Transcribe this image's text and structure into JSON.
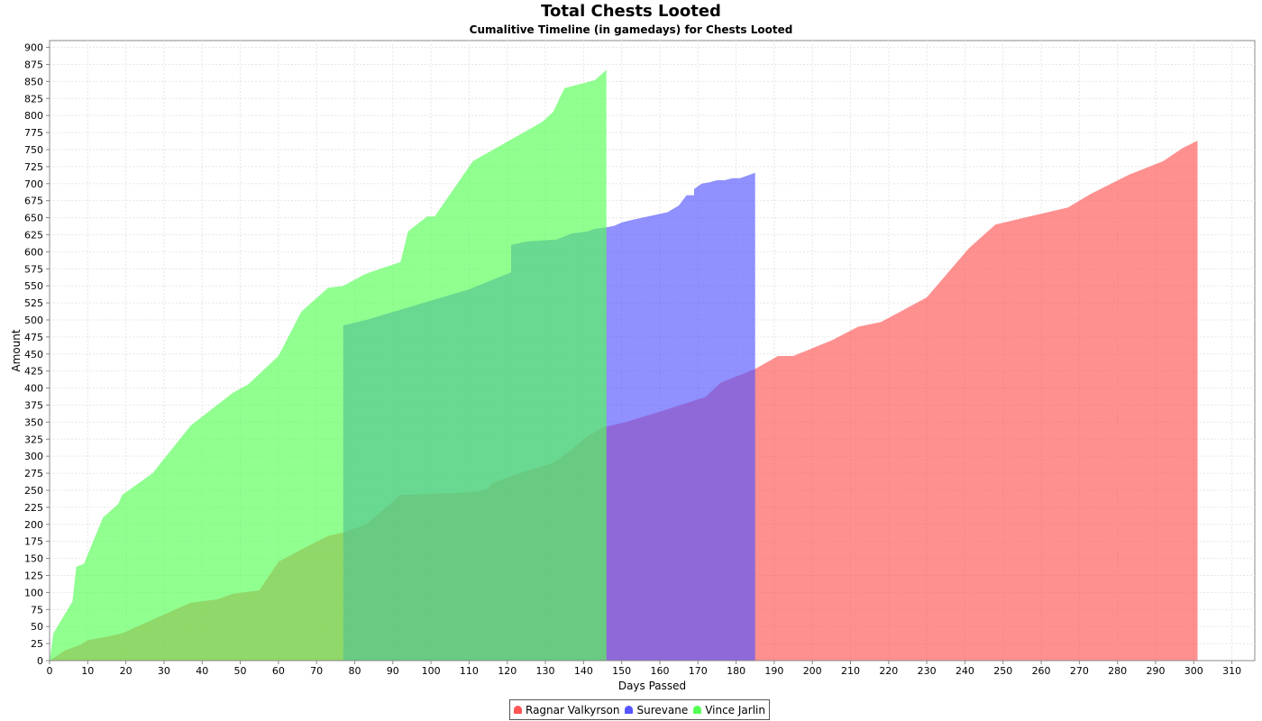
{
  "chart_data": {
    "type": "area",
    "title": "Total Chests Looted",
    "subtitle": "Cumalitive Timeline (in gamedays) for Chests Looted",
    "xlabel": "Days Passed",
    "ylabel": "Amount",
    "xlim": [
      0,
      316
    ],
    "ylim": [
      0,
      910
    ],
    "xticks": [
      0,
      10,
      20,
      30,
      40,
      50,
      60,
      70,
      80,
      90,
      100,
      110,
      120,
      130,
      140,
      150,
      160,
      170,
      180,
      190,
      200,
      210,
      220,
      230,
      240,
      250,
      260,
      270,
      280,
      290,
      300,
      310
    ],
    "yticks": [
      0,
      25,
      50,
      75,
      100,
      125,
      150,
      175,
      200,
      225,
      250,
      275,
      300,
      325,
      350,
      375,
      400,
      425,
      450,
      475,
      500,
      525,
      550,
      575,
      600,
      625,
      650,
      675,
      700,
      725,
      750,
      775,
      800,
      825,
      850,
      875,
      900
    ],
    "grid": true,
    "legend_position": "bottom",
    "series": [
      {
        "name": "Ragnar Valkyrson",
        "color": "#ff5555",
        "points": [
          [
            0,
            0
          ],
          [
            4,
            15
          ],
          [
            8,
            23
          ],
          [
            10,
            30
          ],
          [
            15,
            35
          ],
          [
            19,
            40
          ],
          [
            27,
            60
          ],
          [
            37,
            85
          ],
          [
            44,
            90
          ],
          [
            48,
            98
          ],
          [
            55,
            103
          ],
          [
            60,
            145
          ],
          [
            66,
            163
          ],
          [
            73,
            183
          ],
          [
            77,
            188
          ],
          [
            83,
            200
          ],
          [
            92,
            243
          ],
          [
            107,
            246
          ],
          [
            112,
            248
          ],
          [
            115,
            252
          ],
          [
            116,
            260
          ],
          [
            122,
            273
          ],
          [
            132,
            290
          ],
          [
            137,
            310
          ],
          [
            140,
            325
          ],
          [
            145,
            342
          ],
          [
            151,
            350
          ],
          [
            161,
            367
          ],
          [
            172,
            387
          ],
          [
            176,
            408
          ],
          [
            185,
            428
          ],
          [
            191,
            447
          ],
          [
            195,
            447
          ],
          [
            205,
            470
          ],
          [
            212,
            490
          ],
          [
            218,
            497
          ],
          [
            230,
            533
          ],
          [
            241,
            605
          ],
          [
            248,
            640
          ],
          [
            257,
            652
          ],
          [
            267,
            665
          ],
          [
            273,
            685
          ],
          [
            283,
            713
          ],
          [
            292,
            733
          ],
          [
            297,
            752
          ],
          [
            301,
            763
          ]
        ]
      },
      {
        "name": "Surevane",
        "color": "#5555ff",
        "points": [
          [
            77,
            492
          ],
          [
            83,
            500
          ],
          [
            110,
            545
          ],
          [
            121,
            570
          ],
          [
            121,
            610
          ],
          [
            125,
            615
          ],
          [
            133,
            618
          ],
          [
            137,
            627
          ],
          [
            141,
            630
          ],
          [
            143,
            634
          ],
          [
            146,
            636
          ],
          [
            148,
            638
          ],
          [
            150,
            643
          ],
          [
            153,
            647
          ],
          [
            162,
            658
          ],
          [
            165,
            668
          ],
          [
            167,
            683
          ],
          [
            169,
            683
          ],
          [
            169,
            692
          ],
          [
            171,
            700
          ],
          [
            173,
            702
          ],
          [
            175,
            705
          ],
          [
            177,
            705
          ],
          [
            179,
            708
          ],
          [
            181,
            708
          ],
          [
            183,
            712
          ],
          [
            185,
            716
          ]
        ]
      },
      {
        "name": "Vince Jarlin",
        "color": "#55ff55",
        "points": [
          [
            0,
            0
          ],
          [
            1,
            40
          ],
          [
            6,
            87
          ],
          [
            7,
            138
          ],
          [
            9,
            142
          ],
          [
            14,
            210
          ],
          [
            18,
            230
          ],
          [
            19,
            243
          ],
          [
            27,
            275
          ],
          [
            37,
            345
          ],
          [
            48,
            393
          ],
          [
            52,
            405
          ],
          [
            60,
            447
          ],
          [
            66,
            512
          ],
          [
            73,
            547
          ],
          [
            77,
            550
          ],
          [
            82,
            565
          ],
          [
            84,
            570
          ],
          [
            92,
            585
          ],
          [
            94,
            630
          ],
          [
            99,
            652
          ],
          [
            101,
            652
          ],
          [
            111,
            733
          ],
          [
            129,
            790
          ],
          [
            132,
            805
          ],
          [
            135,
            840
          ],
          [
            143,
            852
          ],
          [
            146,
            867
          ]
        ]
      }
    ]
  }
}
